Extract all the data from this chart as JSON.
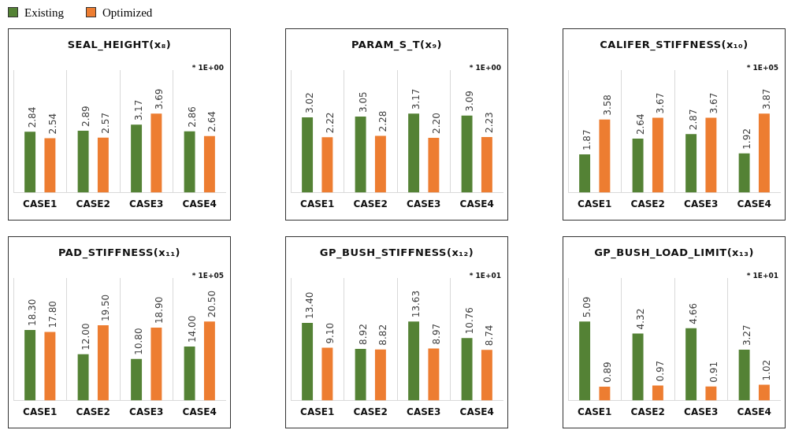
{
  "chart_data": [
    {
      "type": "bar",
      "title": "SEAL_HEIGHT(x₈)",
      "annotations": [
        "* 1E+00"
      ],
      "categories": [
        "CASE1",
        "CASE2",
        "CASE3",
        "CASE4"
      ],
      "grid": "x",
      "legend": "top left",
      "series": [
        {
          "name": "Existing",
          "color": "#548235",
          "values": [
            2.84,
            2.89,
            3.17,
            2.86
          ],
          "value_labels": [
            "2.84",
            "2.89",
            "3.17",
            "2.86"
          ]
        },
        {
          "name": "Optimized",
          "color": "#ed7d31",
          "values": [
            2.54,
            2.57,
            3.69,
            2.64
          ],
          "value_labels": [
            "2.54",
            "2.57",
            "3.69",
            "2.64"
          ]
        }
      ]
    },
    {
      "type": "bar",
      "title": "PARAM_S_T(x₉)",
      "annotations": [
        "* 1E+00"
      ],
      "categories": [
        "CASE1",
        "CASE2",
        "CASE3",
        "CASE4"
      ],
      "grid": "x",
      "series": [
        {
          "color": "#548235",
          "values": [
            3.02,
            3.05,
            3.17,
            3.09
          ],
          "value_labels": [
            "3.02",
            "3.05",
            "3.17",
            "3.09"
          ]
        },
        {
          "color": "#ed7d31",
          "values": [
            2.22,
            2.28,
            2.2,
            2.23
          ],
          "value_labels": [
            "2.22",
            "2.28",
            "2.20",
            "2.23"
          ]
        }
      ]
    },
    {
      "type": "bar",
      "title": "CALIFER_STIFFNESS(x₁₀)",
      "annotations": [
        "* 1E+05"
      ],
      "categories": [
        "CASE1",
        "CASE2",
        "CASE3",
        "CASE4"
      ],
      "grid": "x",
      "series": [
        {
          "color": "#548235",
          "values": [
            1.87,
            2.64,
            2.87,
            1.92
          ],
          "value_labels": [
            "1.87",
            "2.64",
            "2.87",
            "1.92"
          ]
        },
        {
          "color": "#ed7d31",
          "values": [
            3.58,
            3.67,
            3.67,
            3.87
          ],
          "value_labels": [
            "3.58",
            "3.67",
            "3.67",
            "3.87"
          ]
        }
      ]
    },
    {
      "type": "bar",
      "title": "PAD_STIFFNESS(x₁₁)",
      "annotations": [
        "* 1E+05"
      ],
      "categories": [
        "CASE1",
        "CASE2",
        "CASE3",
        "CASE4"
      ],
      "grid": "x",
      "series": [
        {
          "color": "#548235",
          "values": [
            18.3,
            12.0,
            10.8,
            14.0
          ],
          "value_labels": [
            "18.30",
            "12.00",
            "10.80",
            "14.00"
          ]
        },
        {
          "color": "#ed7d31",
          "values": [
            17.8,
            19.5,
            18.9,
            20.5
          ],
          "value_labels": [
            "17.80",
            "19.50",
            "18.90",
            "20.50"
          ]
        }
      ]
    },
    {
      "type": "bar",
      "title": "GP_BUSH_STIFFNESS(x₁₂)",
      "annotations": [
        "* 1E+01"
      ],
      "categories": [
        "CASE1",
        "CASE2",
        "CASE3",
        "CASE4"
      ],
      "grid": "x",
      "series": [
        {
          "color": "#548235",
          "values": [
            13.4,
            8.92,
            13.63,
            10.76
          ],
          "value_labels": [
            "13.40",
            "8.92",
            "13.63",
            "10.76"
          ]
        },
        {
          "color": "#ed7d31",
          "values": [
            9.1,
            8.82,
            8.97,
            8.74
          ],
          "value_labels": [
            "9.10",
            "8.82",
            "8.97",
            "8.74"
          ]
        }
      ]
    },
    {
      "type": "bar",
      "title": "GP_BUSH_LOAD_LIMIT(x₁₃)",
      "annotations": [
        "* 1E+01"
      ],
      "categories": [
        "CASE1",
        "CASE2",
        "CASE3",
        "CASE4"
      ],
      "grid": "x",
      "series": [
        {
          "color": "#548235",
          "values": [
            5.09,
            4.32,
            4.66,
            3.27
          ],
          "value_labels": [
            "5.09",
            "4.32",
            "4.66",
            "3.27"
          ]
        },
        {
          "color": "#ed7d31",
          "values": [
            0.89,
            0.97,
            0.91,
            1.02
          ],
          "value_labels": [
            "0.89",
            "0.97",
            "0.91",
            "1.02"
          ]
        }
      ]
    }
  ]
}
